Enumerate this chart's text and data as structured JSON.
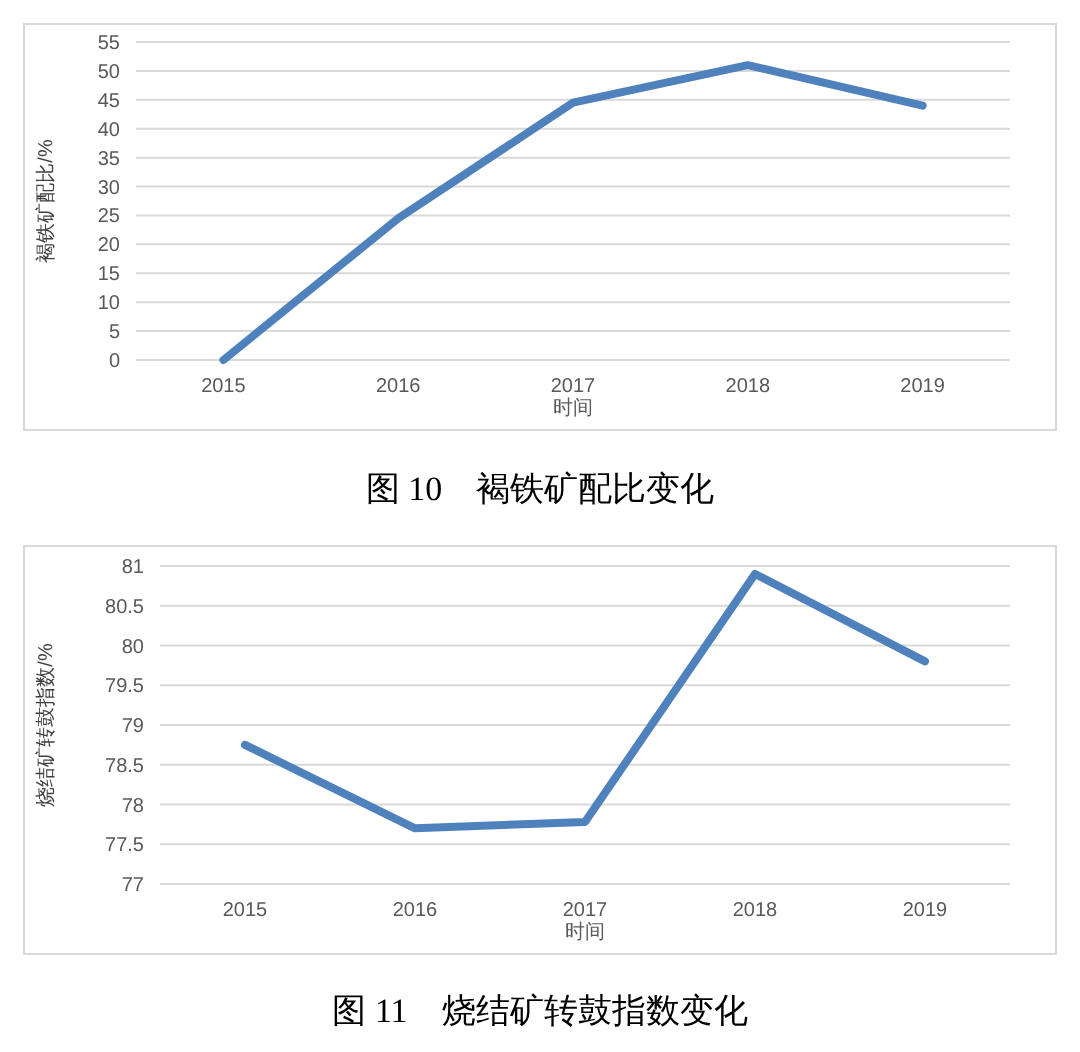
{
  "chart_data": [
    {
      "type": "line",
      "categories": [
        "2015",
        "2016",
        "2017",
        "2018",
        "2019"
      ],
      "xlabel": "时间",
      "ylabel": "褐铁矿配比/%",
      "ylim": [
        0,
        55
      ],
      "yticks": [
        0,
        5,
        10,
        15,
        20,
        25,
        30,
        35,
        40,
        45,
        50,
        55
      ],
      "grid": "y",
      "marker": "none",
      "line_style": "solid",
      "series": [
        {
          "color": "#4f81bd",
          "values": [
            0,
            24.5,
            44.5,
            51,
            44
          ]
        }
      ],
      "annotations": [
        "图 10　褐铁矿配比变化"
      ]
    },
    {
      "type": "line",
      "categories": [
        "2015",
        "2016",
        "2017",
        "2018",
        "2019"
      ],
      "xlabel": "时间",
      "ylabel": "烧结矿转鼓指数/%",
      "ylim": [
        77,
        81
      ],
      "yticks": [
        77,
        77.5,
        78,
        78.5,
        79,
        79.5,
        80,
        80.5,
        81
      ],
      "grid": "y",
      "marker": "none",
      "line_style": "solid",
      "series": [
        {
          "color": "#4f81bd",
          "values": [
            78.75,
            77.7,
            77.78,
            80.9,
            79.8
          ]
        }
      ],
      "annotations": [
        "图 11　烧结矿转鼓指数变化"
      ]
    }
  ]
}
